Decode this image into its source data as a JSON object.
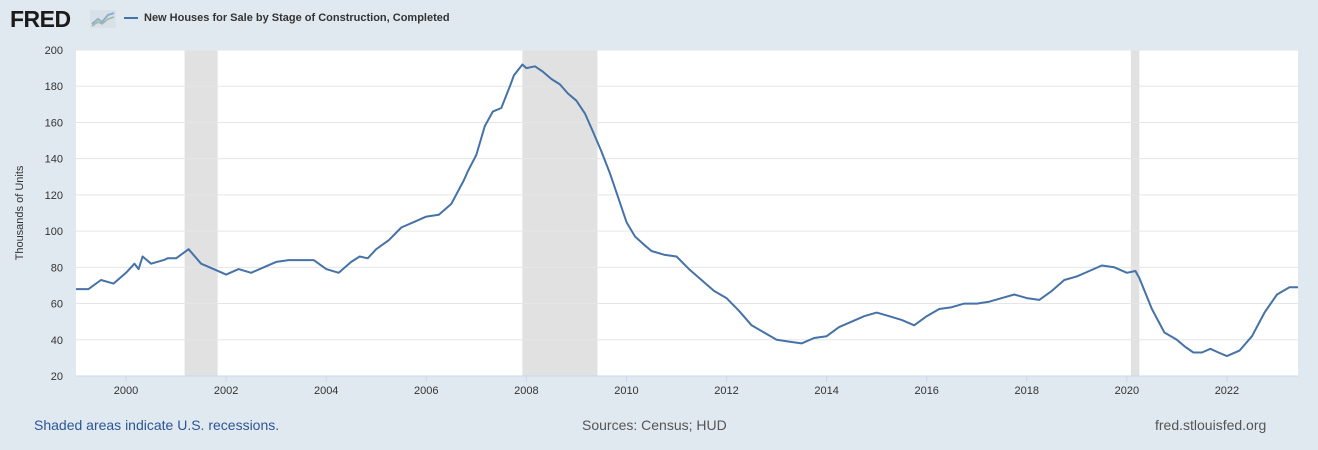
{
  "header": {
    "logo_text": "FRED",
    "legend_label": "New Houses for Sale by Stage of Construction, Completed",
    "series_color": "#4572a7"
  },
  "footer": {
    "recession_note": "Shaded areas indicate U.S. recessions.",
    "sources": "Sources: Census; HUD",
    "site": "fred.stlouisfed.org"
  },
  "chart_data": {
    "type": "line",
    "ylabel": "Thousands of Units",
    "xlabel": "",
    "ylim": [
      20,
      200
    ],
    "yticks": [
      20,
      40,
      60,
      80,
      100,
      120,
      140,
      160,
      180,
      200
    ],
    "xlim": [
      1999.0,
      2023.42
    ],
    "xticks": [
      "2000",
      "2002",
      "2004",
      "2006",
      "2008",
      "2010",
      "2012",
      "2014",
      "2016",
      "2018",
      "2020",
      "2022"
    ],
    "grid": "horizontal",
    "recessions": [
      [
        2001.17,
        2001.83
      ],
      [
        2007.92,
        2009.42
      ],
      [
        2020.08,
        2020.25
      ]
    ],
    "series": [
      {
        "name": "New Houses for Sale by Stage of Construction, Completed",
        "color": "#4572a7",
        "points": [
          [
            1999.0,
            68
          ],
          [
            1999.25,
            68
          ],
          [
            1999.5,
            73
          ],
          [
            1999.75,
            71
          ],
          [
            2000.0,
            77
          ],
          [
            2000.17,
            82
          ],
          [
            2000.25,
            79
          ],
          [
            2000.33,
            86
          ],
          [
            2000.5,
            82
          ],
          [
            2000.75,
            84
          ],
          [
            2000.83,
            85
          ],
          [
            2001.0,
            85
          ],
          [
            2001.25,
            90
          ],
          [
            2001.5,
            82
          ],
          [
            2001.75,
            79
          ],
          [
            2002.0,
            76
          ],
          [
            2002.25,
            79
          ],
          [
            2002.5,
            77
          ],
          [
            2002.75,
            80
          ],
          [
            2003.0,
            83
          ],
          [
            2003.25,
            84
          ],
          [
            2003.5,
            84
          ],
          [
            2003.75,
            84
          ],
          [
            2004.0,
            79
          ],
          [
            2004.25,
            77
          ],
          [
            2004.5,
            83
          ],
          [
            2004.67,
            86
          ],
          [
            2004.83,
            85
          ],
          [
            2005.0,
            90
          ],
          [
            2005.25,
            95
          ],
          [
            2005.5,
            102
          ],
          [
            2005.75,
            105
          ],
          [
            2006.0,
            108
          ],
          [
            2006.25,
            109
          ],
          [
            2006.5,
            115
          ],
          [
            2006.75,
            128
          ],
          [
            2006.83,
            133
          ],
          [
            2007.0,
            142
          ],
          [
            2007.17,
            158
          ],
          [
            2007.33,
            166
          ],
          [
            2007.5,
            168
          ],
          [
            2007.67,
            180
          ],
          [
            2007.75,
            186
          ],
          [
            2007.92,
            192
          ],
          [
            2008.0,
            190
          ],
          [
            2008.17,
            191
          ],
          [
            2008.33,
            188
          ],
          [
            2008.5,
            184
          ],
          [
            2008.67,
            181
          ],
          [
            2008.83,
            176
          ],
          [
            2009.0,
            172
          ],
          [
            2009.17,
            165
          ],
          [
            2009.33,
            155
          ],
          [
            2009.5,
            144
          ],
          [
            2009.67,
            132
          ],
          [
            2009.83,
            119
          ],
          [
            2010.0,
            105
          ],
          [
            2010.17,
            97
          ],
          [
            2010.33,
            93
          ],
          [
            2010.5,
            89
          ],
          [
            2010.75,
            87
          ],
          [
            2011.0,
            86
          ],
          [
            2011.25,
            79
          ],
          [
            2011.5,
            73
          ],
          [
            2011.75,
            67
          ],
          [
            2012.0,
            63
          ],
          [
            2012.25,
            56
          ],
          [
            2012.5,
            48
          ],
          [
            2012.75,
            44
          ],
          [
            2013.0,
            40
          ],
          [
            2013.25,
            39
          ],
          [
            2013.5,
            38
          ],
          [
            2013.75,
            41
          ],
          [
            2014.0,
            42
          ],
          [
            2014.25,
            47
          ],
          [
            2014.5,
            50
          ],
          [
            2014.75,
            53
          ],
          [
            2015.0,
            55
          ],
          [
            2015.25,
            53
          ],
          [
            2015.5,
            51
          ],
          [
            2015.75,
            48
          ],
          [
            2016.0,
            53
          ],
          [
            2016.25,
            57
          ],
          [
            2016.5,
            58
          ],
          [
            2016.75,
            60
          ],
          [
            2017.0,
            60
          ],
          [
            2017.25,
            61
          ],
          [
            2017.5,
            63
          ],
          [
            2017.75,
            65
          ],
          [
            2018.0,
            63
          ],
          [
            2018.25,
            62
          ],
          [
            2018.5,
            67
          ],
          [
            2018.75,
            73
          ],
          [
            2019.0,
            75
          ],
          [
            2019.25,
            78
          ],
          [
            2019.5,
            81
          ],
          [
            2019.75,
            80
          ],
          [
            2020.0,
            77
          ],
          [
            2020.17,
            78
          ],
          [
            2020.25,
            74
          ],
          [
            2020.5,
            57
          ],
          [
            2020.75,
            44
          ],
          [
            2021.0,
            40
          ],
          [
            2021.17,
            36
          ],
          [
            2021.33,
            33
          ],
          [
            2021.5,
            33
          ],
          [
            2021.67,
            35
          ],
          [
            2021.83,
            33
          ],
          [
            2022.0,
            31
          ],
          [
            2022.25,
            34
          ],
          [
            2022.5,
            42
          ],
          [
            2022.75,
            55
          ],
          [
            2023.0,
            65
          ],
          [
            2023.25,
            69
          ],
          [
            2023.42,
            69
          ]
        ]
      }
    ]
  }
}
